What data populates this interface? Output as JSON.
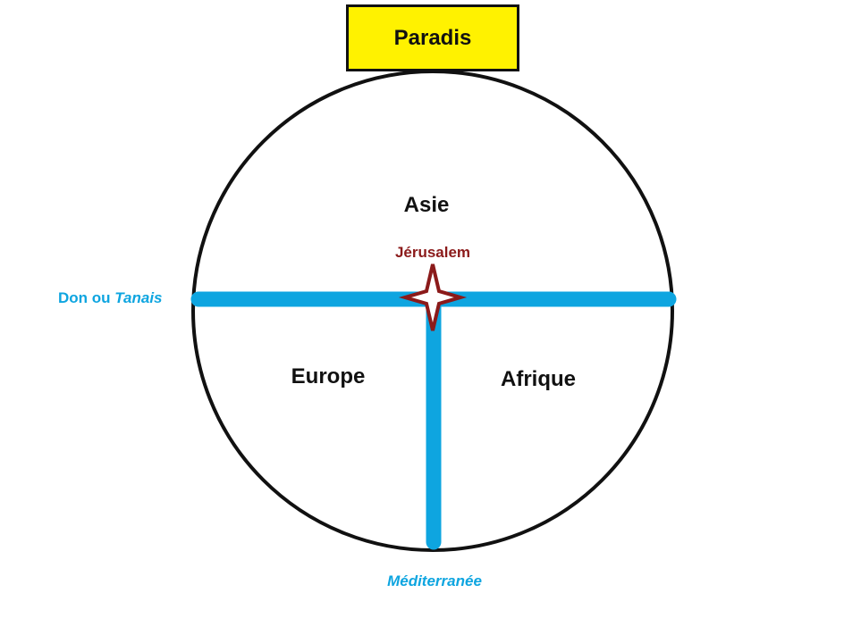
{
  "labels": {
    "paradis": "Paradis",
    "asie": "Asie",
    "europe": "Europe",
    "afrique": "Afrique",
    "jerusalem": "Jérusalem",
    "don_prefix": "Don ou ",
    "don_italic": "Tanais",
    "mediterranee": "Méditerranée"
  },
  "colors": {
    "water": "#0ea5e0",
    "jerusalem": "#8b1a1a",
    "paradis_fill": "#fff200",
    "outline": "#111111",
    "continent_text": "#111111"
  },
  "icons": {
    "jerusalem_marker": "four-point-star-icon"
  }
}
